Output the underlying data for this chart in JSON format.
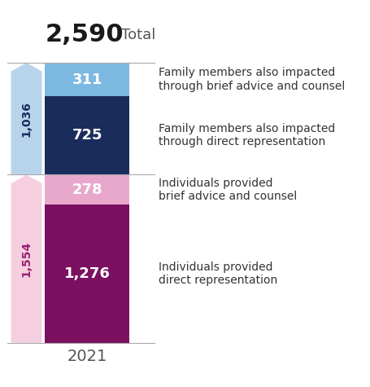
{
  "total": "2,590",
  "year": "2021",
  "top_group": {
    "name": "family",
    "outer_value": 1036,
    "outer_label": "1,036",
    "outer_color": "#b8d4ea",
    "label_color": "#1a2c5b",
    "segments_bottom_to_top": [
      {
        "value": 725,
        "label": "725",
        "color": "#1a2c5b",
        "text": "Family members also impacted\nthrough direct representation"
      },
      {
        "value": 311,
        "label": "311",
        "color": "#7db8e0",
        "text": "Family members also impacted\nthrough brief advice and counsel"
      }
    ]
  },
  "bottom_group": {
    "name": "individuals",
    "outer_value": 1554,
    "outer_label": "1,554",
    "outer_color": "#f5cfe0",
    "label_color": "#9b1f6e",
    "segments_bottom_to_top": [
      {
        "value": 1276,
        "label": "1,276",
        "color": "#7b1060",
        "text": "Individuals provided\ndirect representation"
      },
      {
        "value": 278,
        "label": "278",
        "color": "#e8a8cc",
        "text": "Individuals provided\nbrief advice and counsel"
      }
    ]
  },
  "total_fontsize": 22,
  "outer_label_fontsize": 10,
  "segment_label_fontsize": 13,
  "annotation_fontsize": 10,
  "year_fontsize": 14,
  "bg_color": "#ffffff",
  "divider_color": "#aaaaaa",
  "annotation_color": "#333333"
}
